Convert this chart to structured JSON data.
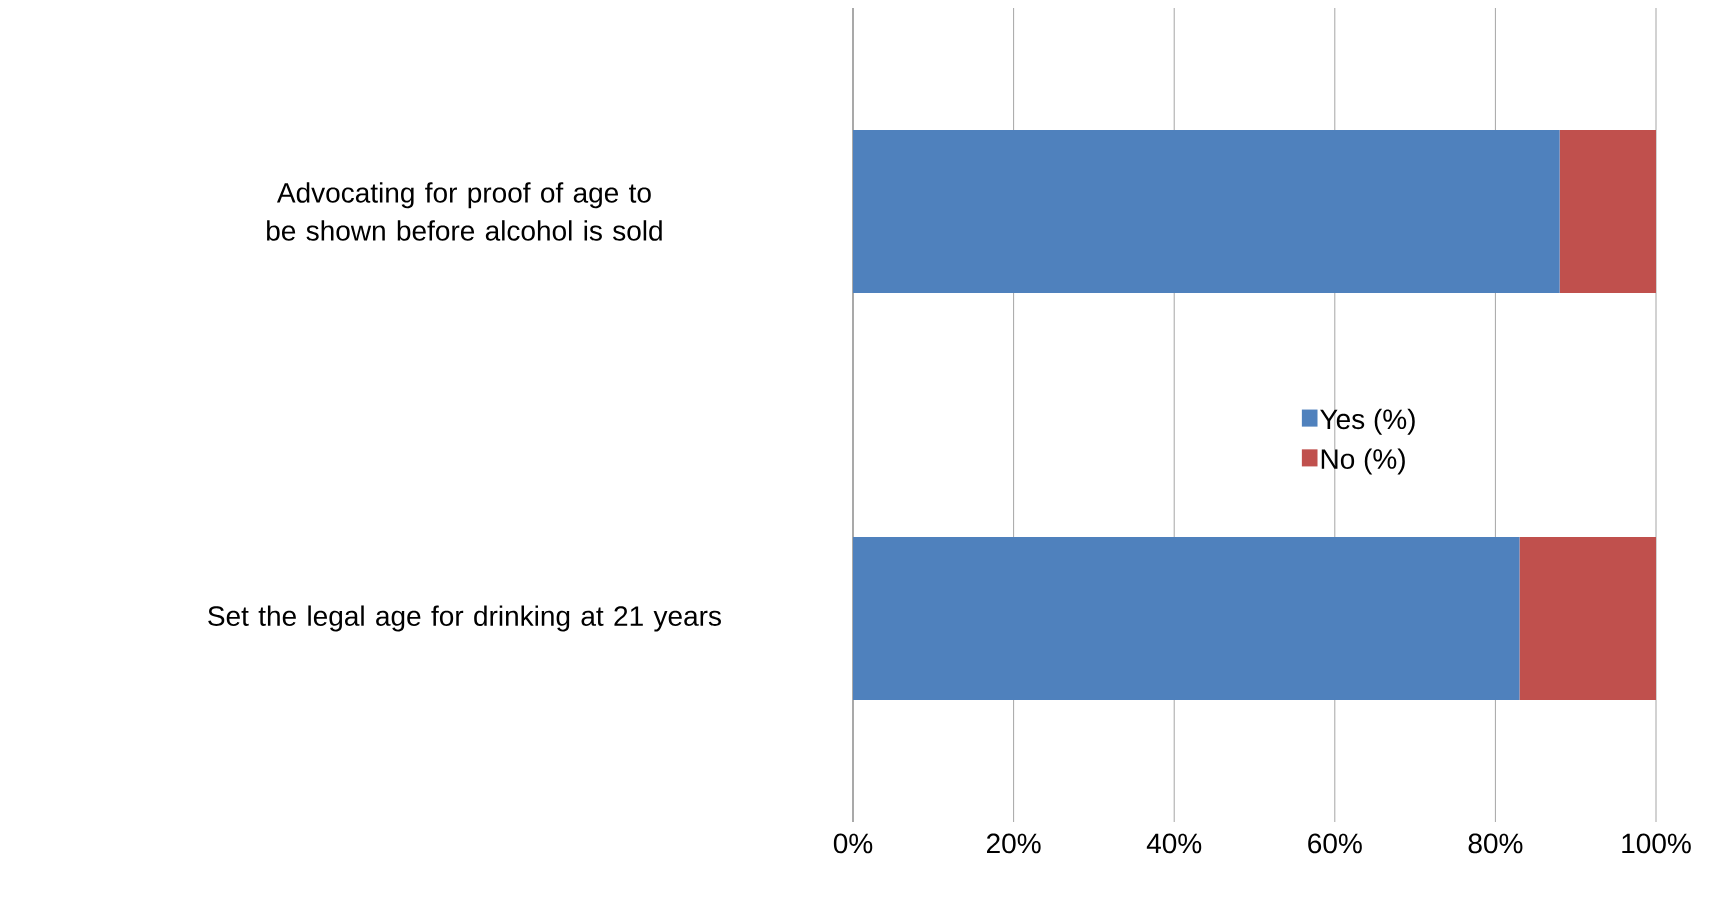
{
  "chart_data": {
    "type": "bar",
    "orientation": "horizontal",
    "stacked": true,
    "categories": [
      "Advocating for proof of age to be shown before alcohol is sold",
      "Set the legal age for drinking at 21 years"
    ],
    "series": [
      {
        "name": "Yes (%)",
        "color": "#4f81bd",
        "values": [
          88,
          83
        ]
      },
      {
        "name": "No (%)",
        "color": "#c0504d",
        "values": [
          12,
          17
        ]
      }
    ],
    "xlim": [
      0,
      100
    ],
    "xticks": [
      {
        "value": 0,
        "label": "0%"
      },
      {
        "value": 20,
        "label": "20%"
      },
      {
        "value": 40,
        "label": "40%"
      },
      {
        "value": 60,
        "label": "60%"
      },
      {
        "value": 80,
        "label": "80%"
      },
      {
        "value": 100,
        "label": "100%"
      }
    ],
    "grid": "x",
    "legend": "right"
  }
}
